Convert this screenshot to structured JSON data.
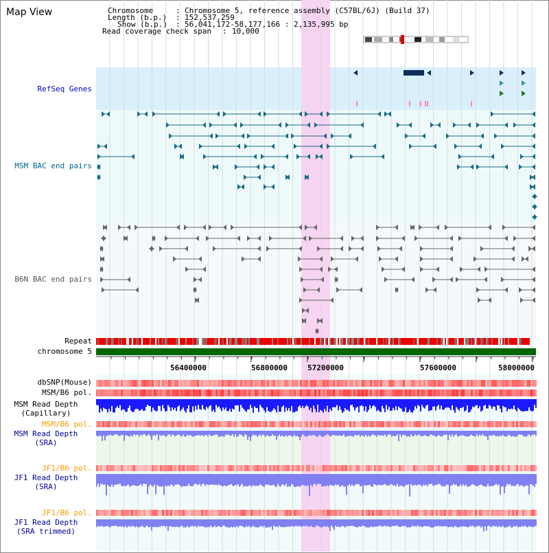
{
  "title": "Map View",
  "info": {
    "chromosome_label": "Chromosome",
    "chromosome_value": "Chromosome 5, reference assembly (C57BL/6J) (Build 37)",
    "length_label": "Length (b.p.)",
    "length_value": "152,537,259",
    "show_label": "Show (b.p.)",
    "show_value": "56,041,172-58,177,166 : 2,135,995 bp",
    "coverage_label": "Read coverage check span",
    "coverage_value": "10,000"
  },
  "tracks": {
    "refseq": "RefSeq Genes",
    "msm_bac": "MSM BAC end pairs",
    "b6n_bac": "B6N BAC end pairs",
    "repeat": "Repeat",
    "chromosome": "chromosome 5",
    "dbsnp": "dbSNP(Mouse)",
    "msm_b6_pol_1": "MSM/B6 pol.",
    "msm_read_depth_cap_1": "MSM Read Depth",
    "msm_read_depth_cap_2": "(Capillary)",
    "msm_b6_pol_2": "MSM/B6 pol.",
    "msm_read_depth_sra_1": "MSM Read Depth",
    "msm_read_depth_sra_2": "(SRA)",
    "jf1_b6_pol_1": "JF1/B6 pol.",
    "jf1_read_depth_sra_1": "JF1 Read Depth",
    "jf1_read_depth_sra_2": "(SRA)",
    "jf1_b6_pol_2": "JF1/B6 pol.",
    "jf1_read_depth_trim_1": "JF1 Read Depth",
    "jf1_read_depth_trim_2": "(SRA trimmed)"
  },
  "axis": {
    "ticks": [
      "56400000",
      "56800000",
      "57200000",
      "57600000",
      "58000000"
    ]
  },
  "colors": {
    "refseq_bg": "#d9effb",
    "bac_bg": "#eefafa",
    "highlight": "#f7d4f1",
    "chromosome": "#006600",
    "repeat_red": "#ee0000",
    "depth_blue": "#1a1aff",
    "depth_light": "#8080f0",
    "msm_color": "#1a6a86",
    "b6n_color": "#666666"
  }
}
